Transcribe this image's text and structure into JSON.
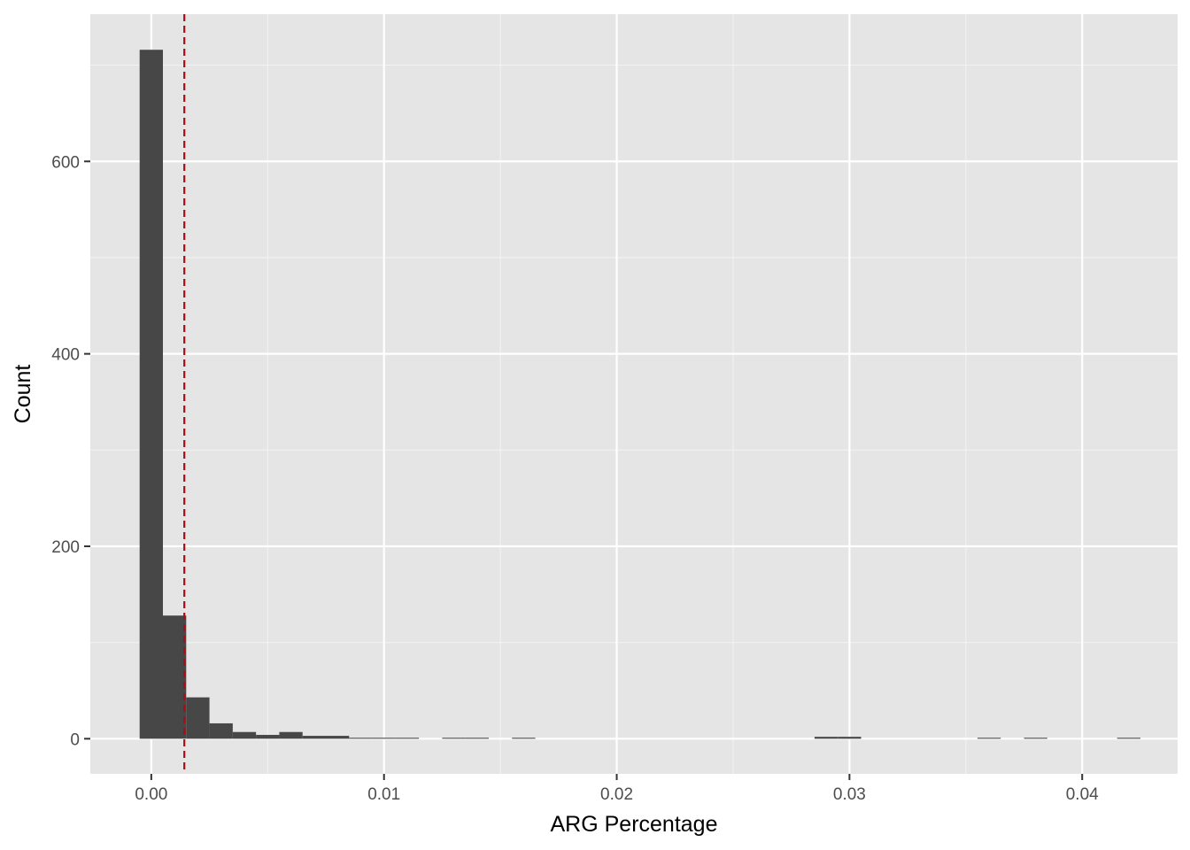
{
  "chart_data": {
    "type": "bar",
    "xlabel": "ARG Percentage",
    "ylabel": "Count",
    "xlim": [
      -0.00262,
      0.0441
    ],
    "ylim": [
      -36.5,
      753
    ],
    "x_ticks": [
      0.0,
      0.01,
      0.02,
      0.03,
      0.04
    ],
    "x_tick_labels": [
      "0.00",
      "0.01",
      "0.02",
      "0.03",
      "0.04"
    ],
    "y_ticks": [
      0,
      200,
      400,
      600
    ],
    "y_tick_labels": [
      "0",
      "200",
      "400",
      "600"
    ],
    "x_minor_gridlines": [
      0.005,
      0.015,
      0.025,
      0.035
    ],
    "y_minor_gridlines": [
      100,
      300,
      500,
      700
    ],
    "grid": true,
    "bin_width": 0.001,
    "bins": [
      {
        "x": 0.0,
        "count": 716
      },
      {
        "x": 0.001,
        "count": 128
      },
      {
        "x": 0.002,
        "count": 43
      },
      {
        "x": 0.003,
        "count": 16
      },
      {
        "x": 0.004,
        "count": 7
      },
      {
        "x": 0.005,
        "count": 4
      },
      {
        "x": 0.006,
        "count": 7
      },
      {
        "x": 0.007,
        "count": 3
      },
      {
        "x": 0.008,
        "count": 3
      },
      {
        "x": 0.009,
        "count": 1
      },
      {
        "x": 0.01,
        "count": 1
      },
      {
        "x": 0.011,
        "count": 1
      },
      {
        "x": 0.013,
        "count": 1
      },
      {
        "x": 0.014,
        "count": 1
      },
      {
        "x": 0.016,
        "count": 1
      },
      {
        "x": 0.029,
        "count": 2
      },
      {
        "x": 0.03,
        "count": 2
      },
      {
        "x": 0.036,
        "count": 1
      },
      {
        "x": 0.038,
        "count": 1
      },
      {
        "x": 0.042,
        "count": 1
      }
    ],
    "reference_line": {
      "x": 0.00142,
      "style": "dashed",
      "color": "#a50f15"
    },
    "colors": {
      "bar": "#474747",
      "panel_background": "#e5e5e5",
      "grid_major": "#ffffff",
      "grid_minor": "#f2f2f2",
      "tick_text": "#4d4d4d",
      "axis_title": "#000000"
    }
  }
}
